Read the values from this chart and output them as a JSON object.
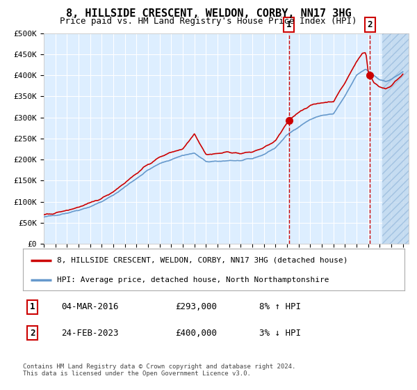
{
  "title": "8, HILLSIDE CRESCENT, WELDON, CORBY, NN17 3HG",
  "subtitle": "Price paid vs. HM Land Registry's House Price Index (HPI)",
  "ylim": [
    0,
    500000
  ],
  "yticks": [
    0,
    50000,
    100000,
    150000,
    200000,
    250000,
    300000,
    350000,
    400000,
    450000,
    500000
  ],
  "ytick_labels": [
    "£0",
    "£50K",
    "£100K",
    "£150K",
    "£200K",
    "£250K",
    "£300K",
    "£350K",
    "£400K",
    "£450K",
    "£500K"
  ],
  "xlim_start": 1995.0,
  "xlim_end": 2026.5,
  "xticks": [
    1995,
    1996,
    1997,
    1998,
    1999,
    2000,
    2001,
    2002,
    2003,
    2004,
    2005,
    2006,
    2007,
    2008,
    2009,
    2010,
    2011,
    2012,
    2013,
    2014,
    2015,
    2016,
    2017,
    2018,
    2019,
    2020,
    2021,
    2022,
    2023,
    2024,
    2025,
    2026
  ],
  "background_color": "#ffffff",
  "plot_bg_color": "#ddeeff",
  "hatch_start": 2024.2,
  "grid_color": "#ffffff",
  "red_line_color": "#cc0000",
  "blue_line_color": "#6699cc",
  "marker_color": "#cc0000",
  "vline_color": "#cc0000",
  "sale1_x": 2016.17,
  "sale1_y": 293000,
  "sale1_label": "1",
  "sale2_x": 2023.15,
  "sale2_y": 400000,
  "sale2_label": "2",
  "legend1_label": "8, HILLSIDE CRESCENT, WELDON, CORBY, NN17 3HG (detached house)",
  "legend2_label": "HPI: Average price, detached house, North Northamptonshire",
  "table_label1": "1",
  "table_date1": "04-MAR-2016",
  "table_price1": "£293,000",
  "table_hpi1": "8% ↑ HPI",
  "table_label2": "2",
  "table_date2": "24-FEB-2023",
  "table_price2": "£400,000",
  "table_hpi2": "3% ↓ HPI",
  "footer": "Contains HM Land Registry data © Crown copyright and database right 2024.\nThis data is licensed under the Open Government Licence v3.0.",
  "title_fontsize": 11,
  "subtitle_fontsize": 9,
  "tick_fontsize": 8,
  "legend_fontsize": 8
}
